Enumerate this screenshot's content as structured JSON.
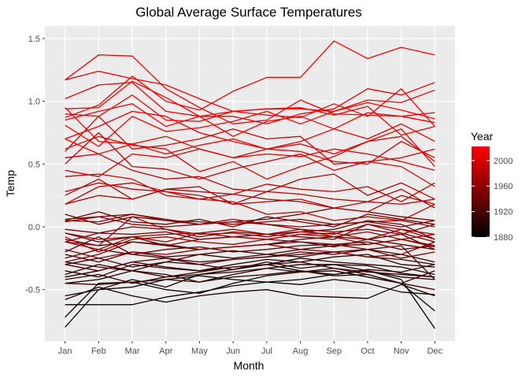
{
  "chart_data": {
    "type": "line",
    "title": "Global Average Surface Temperatures",
    "xlabel": "Month",
    "ylabel": "Temp",
    "categories": [
      "Jan",
      "Feb",
      "Mar",
      "Apr",
      "May",
      "Jun",
      "Jul",
      "Aug",
      "Sep",
      "Oct",
      "Nov",
      "Dec"
    ],
    "ylim": [
      -0.91,
      1.6
    ],
    "yticks": [
      -0.5,
      0.0,
      0.5,
      1.0,
      1.5
    ],
    "ytick_labels": [
      "-0.5",
      "0.0",
      "0.5",
      "1.0",
      "1.5"
    ],
    "grid": true,
    "legend": {
      "title": "Year",
      "placement": "right",
      "type": "colorbar",
      "range": [
        1880,
        2022
      ],
      "ticks": [
        1880,
        1920,
        1960,
        2000
      ],
      "tick_labels": [
        "1880",
        "1920",
        "1960",
        "2000"
      ],
      "low_color": "#000000",
      "high_color": "#ff0000"
    },
    "series_note_color_by": "Year",
    "series": [
      {
        "year": 1880,
        "values": [
          -0.8,
          -0.5,
          -0.48,
          -0.42,
          -0.39,
          -0.42,
          -0.44,
          -0.42,
          -0.38,
          -0.35,
          -0.42,
          -0.81
        ]
      },
      {
        "year": 1883,
        "values": [
          -0.72,
          -0.45,
          -0.44,
          -0.5,
          -0.53,
          -0.45,
          -0.39,
          -0.36,
          -0.35,
          -0.4,
          -0.45,
          -0.67
        ]
      },
      {
        "year": 1887,
        "values": [
          -0.62,
          -0.62,
          -0.62,
          -0.56,
          -0.52,
          -0.47,
          -0.44,
          -0.46,
          -0.42,
          -0.45,
          -0.52,
          -0.54
        ]
      },
      {
        "year": 1890,
        "values": [
          -0.58,
          -0.48,
          -0.55,
          -0.6,
          -0.55,
          -0.52,
          -0.5,
          -0.55,
          -0.56,
          -0.57,
          -0.46,
          -0.55
        ]
      },
      {
        "year": 1893,
        "values": [
          -0.55,
          -0.5,
          -0.42,
          -0.48,
          -0.38,
          -0.34,
          -0.3,
          -0.35,
          -0.39,
          -0.38,
          -0.45,
          -0.35
        ]
      },
      {
        "year": 1896,
        "values": [
          -0.45,
          -0.42,
          -0.35,
          -0.38,
          -0.44,
          -0.38,
          -0.33,
          -0.3,
          -0.3,
          -0.31,
          -0.37,
          -0.4
        ]
      },
      {
        "year": 1899,
        "values": [
          -0.4,
          -0.35,
          -0.28,
          -0.32,
          -0.35,
          -0.32,
          -0.3,
          -0.25,
          -0.28,
          -0.3,
          -0.32,
          -0.38
        ]
      },
      {
        "year": 1902,
        "values": [
          -0.38,
          -0.3,
          -0.35,
          -0.28,
          -0.3,
          -0.34,
          -0.28,
          -0.33,
          -0.3,
          -0.35,
          -0.4,
          -0.42
        ]
      },
      {
        "year": 1905,
        "values": [
          -0.35,
          -0.4,
          -0.3,
          -0.33,
          -0.35,
          -0.3,
          -0.26,
          -0.28,
          -0.24,
          -0.22,
          -0.3,
          -0.32
        ]
      },
      {
        "year": 1908,
        "values": [
          -0.42,
          -0.38,
          -0.45,
          -0.4,
          -0.38,
          -0.36,
          -0.33,
          -0.36,
          -0.33,
          -0.36,
          -0.38,
          -0.4
        ]
      },
      {
        "year": 1911,
        "values": [
          -0.45,
          -0.46,
          -0.44,
          -0.42,
          -0.44,
          -0.4,
          -0.38,
          -0.35,
          -0.38,
          -0.34,
          -0.36,
          -0.3
        ]
      },
      {
        "year": 1914,
        "values": [
          -0.3,
          -0.25,
          -0.32,
          -0.28,
          -0.22,
          -0.25,
          -0.22,
          -0.24,
          -0.2,
          -0.18,
          -0.22,
          -0.28
        ]
      },
      {
        "year": 1917,
        "values": [
          -0.28,
          -0.32,
          -0.35,
          -0.4,
          -0.36,
          -0.32,
          -0.3,
          -0.28,
          -0.33,
          -0.38,
          -0.45,
          -0.5
        ]
      },
      {
        "year": 1920,
        "values": [
          -0.25,
          -0.18,
          -0.22,
          -0.25,
          -0.28,
          -0.26,
          -0.24,
          -0.22,
          -0.2,
          -0.24,
          -0.26,
          -0.3
        ]
      },
      {
        "year": 1923,
        "values": [
          -0.22,
          -0.28,
          -0.2,
          -0.24,
          -0.22,
          -0.19,
          -0.22,
          -0.18,
          -0.15,
          -0.14,
          -0.1,
          -0.15
        ]
      },
      {
        "year": 1926,
        "values": [
          -0.05,
          -0.12,
          -0.08,
          -0.15,
          -0.18,
          -0.16,
          -0.14,
          -0.12,
          -0.16,
          -0.1,
          -0.06,
          -0.18
        ]
      },
      {
        "year": 1929,
        "values": [
          -0.3,
          -0.35,
          -0.28,
          -0.25,
          -0.3,
          -0.26,
          -0.24,
          -0.2,
          -0.22,
          -0.18,
          -0.15,
          -0.42
        ]
      },
      {
        "year": 1932,
        "values": [
          -0.1,
          -0.15,
          -0.12,
          -0.14,
          -0.18,
          -0.16,
          -0.14,
          -0.1,
          -0.08,
          -0.1,
          -0.14,
          -0.18
        ]
      },
      {
        "year": 1935,
        "values": [
          -0.2,
          -0.08,
          -0.22,
          -0.18,
          -0.16,
          -0.2,
          -0.18,
          -0.15,
          -0.14,
          -0.12,
          -0.18,
          -0.15
        ]
      },
      {
        "year": 1938,
        "values": [
          -0.02,
          -0.05,
          -0.06,
          -0.04,
          -0.1,
          -0.08,
          -0.06,
          -0.04,
          -0.02,
          0.05,
          0.02,
          -0.1
        ]
      },
      {
        "year": 1941,
        "values": [
          0.05,
          0.12,
          0.04,
          0.02,
          0.06,
          0.0,
          0.08,
          0.04,
          0.0,
          0.1,
          0.06,
          0.02
        ]
      },
      {
        "year": 1944,
        "values": [
          0.1,
          0.02,
          0.08,
          0.05,
          0.02,
          0.04,
          0.06,
          0.1,
          0.15,
          0.12,
          0.08,
          0.05
        ]
      },
      {
        "year": 1947,
        "values": [
          -0.12,
          -0.05,
          0.0,
          -0.02,
          -0.08,
          -0.04,
          -0.06,
          -0.08,
          -0.1,
          0.02,
          -0.05,
          -0.12
        ]
      },
      {
        "year": 1950,
        "values": [
          -0.28,
          -0.22,
          -0.12,
          -0.15,
          -0.1,
          -0.08,
          -0.1,
          -0.12,
          -0.14,
          -0.18,
          -0.25,
          -0.2
        ]
      },
      {
        "year": 1953,
        "values": [
          0.06,
          0.08,
          0.1,
          0.05,
          0.04,
          0.02,
          0.04,
          0.06,
          0.02,
          0.04,
          0.0,
          0.05
        ]
      },
      {
        "year": 1956,
        "values": [
          -0.18,
          -0.25,
          -0.2,
          -0.22,
          -0.18,
          -0.16,
          -0.14,
          -0.18,
          -0.2,
          -0.24,
          -0.22,
          -0.12
        ]
      },
      {
        "year": 1959,
        "values": [
          0.05,
          0.04,
          0.1,
          0.06,
          0.02,
          0.04,
          0.02,
          -0.02,
          -0.04,
          -0.02,
          -0.06,
          0.02
        ]
      },
      {
        "year": 1962,
        "values": [
          0.04,
          0.08,
          0.02,
          0.0,
          0.02,
          0.06,
          0.02,
          0.0,
          0.02,
          0.04,
          0.05,
          0.0
        ]
      },
      {
        "year": 1965,
        "values": [
          -0.05,
          -0.1,
          -0.08,
          -0.12,
          -0.05,
          -0.02,
          -0.06,
          -0.02,
          -0.08,
          -0.04,
          -0.1,
          -0.06
        ]
      },
      {
        "year": 1968,
        "values": [
          -0.12,
          -0.15,
          0.08,
          -0.02,
          -0.06,
          -0.05,
          -0.08,
          -0.04,
          -0.06,
          0.02,
          -0.02,
          -0.1
        ]
      },
      {
        "year": 1971,
        "values": [
          -0.08,
          -0.2,
          -0.1,
          -0.08,
          -0.12,
          -0.14,
          -0.1,
          -0.06,
          -0.05,
          -0.1,
          -0.02,
          -0.06
        ]
      },
      {
        "year": 1974,
        "values": [
          -0.12,
          -0.18,
          -0.08,
          -0.06,
          -0.05,
          -0.08,
          -0.1,
          -0.06,
          -0.08,
          -0.14,
          -0.1,
          -0.16
        ]
      },
      {
        "year": 1977,
        "values": [
          0.18,
          0.25,
          0.22,
          0.3,
          0.28,
          0.26,
          0.22,
          0.2,
          0.15,
          0.12,
          0.25,
          0.18
        ]
      },
      {
        "year": 1980,
        "values": [
          0.25,
          0.38,
          0.22,
          0.3,
          0.32,
          0.18,
          0.28,
          0.26,
          0.22,
          0.2,
          0.3,
          0.15
        ]
      },
      {
        "year": 1983,
        "values": [
          0.55,
          0.58,
          0.45,
          0.38,
          0.4,
          0.3,
          0.28,
          0.38,
          0.42,
          0.25,
          0.35,
          0.22
        ]
      },
      {
        "year": 1986,
        "values": [
          0.28,
          0.35,
          0.3,
          0.28,
          0.25,
          0.18,
          0.2,
          0.22,
          0.15,
          0.2,
          0.18,
          0.22
        ]
      },
      {
        "year": 1989,
        "values": [
          0.18,
          0.32,
          0.35,
          0.28,
          0.22,
          0.26,
          0.34,
          0.3,
          0.28,
          0.32,
          0.2,
          0.35
        ]
      },
      {
        "year": 1992,
        "values": [
          0.4,
          0.42,
          0.38,
          0.25,
          0.22,
          0.2,
          0.1,
          0.12,
          0.05,
          0.08,
          0.05,
          0.18
        ]
      },
      {
        "year": 1995,
        "values": [
          0.5,
          0.75,
          0.48,
          0.46,
          0.38,
          0.46,
          0.52,
          0.58,
          0.45,
          0.52,
          0.48,
          0.32
        ]
      },
      {
        "year": 1998,
        "values": [
          0.6,
          0.88,
          0.62,
          0.65,
          0.7,
          0.78,
          0.7,
          0.72,
          0.5,
          0.52,
          0.55,
          0.62
        ]
      },
      {
        "year": 2001,
        "values": [
          0.45,
          0.4,
          0.58,
          0.55,
          0.62,
          0.55,
          0.62,
          0.6,
          0.52,
          0.5,
          0.68,
          0.55
        ]
      },
      {
        "year": 2004,
        "values": [
          0.62,
          0.72,
          0.65,
          0.62,
          0.44,
          0.52,
          0.38,
          0.48,
          0.56,
          0.68,
          0.72,
          0.52
        ]
      },
      {
        "year": 2007,
        "values": [
          0.95,
          0.68,
          0.66,
          0.72,
          0.62,
          0.55,
          0.58,
          0.56,
          0.62,
          0.58,
          0.52,
          0.45
        ]
      },
      {
        "year": 2010,
        "values": [
          0.7,
          0.8,
          0.92,
          0.88,
          0.75,
          0.68,
          0.62,
          0.66,
          0.58,
          0.68,
          0.78,
          0.48
        ]
      },
      {
        "year": 2013,
        "values": [
          0.7,
          0.58,
          0.66,
          0.58,
          0.65,
          0.7,
          0.62,
          0.68,
          0.78,
          0.7,
          0.82,
          0.68
        ]
      },
      {
        "year": 2015,
        "values": [
          0.85,
          0.92,
          0.98,
          0.8,
          0.88,
          0.88,
          0.82,
          0.9,
          0.94,
          1.1,
          1.05,
          1.15
        ]
      },
      {
        "year": 2016,
        "values": [
          1.17,
          1.37,
          1.36,
          1.1,
          0.95,
          0.82,
          0.85,
          1.01,
          0.9,
          0.89,
          0.88,
          0.83
        ]
      },
      {
        "year": 2017,
        "values": [
          1.02,
          1.13,
          1.15,
          0.92,
          0.88,
          0.72,
          0.84,
          0.88,
          0.78,
          0.91,
          0.88,
          0.91
        ]
      },
      {
        "year": 2019,
        "values": [
          0.94,
          0.95,
          1.16,
          1.03,
          0.88,
          0.92,
          0.94,
          0.94,
          0.92,
          1.01,
          0.99,
          1.09
        ]
      },
      {
        "year": 2020,
        "values": [
          1.17,
          1.24,
          1.18,
          1.13,
          1.02,
          0.92,
          0.89,
          0.87,
          0.98,
          0.88,
          1.1,
          0.8
        ]
      },
      {
        "year": 2021,
        "values": [
          0.81,
          0.64,
          0.88,
          0.76,
          0.79,
          0.84,
          0.92,
          0.82,
          0.92,
          0.99,
          0.93,
          0.86
        ]
      },
      {
        "year": 2022,
        "values": [
          0.9,
          0.88,
          1.05,
          0.85,
          0.84,
          0.92,
          0.94,
          0.95,
          0.89,
          0.96,
          0.73,
          0.8
        ]
      },
      {
        "year": 2023,
        "values": [
          0.87,
          0.97,
          1.2,
          1.0,
          0.93,
          1.08,
          1.19,
          1.19,
          1.48,
          1.34,
          1.43,
          1.37
        ]
      }
    ]
  }
}
